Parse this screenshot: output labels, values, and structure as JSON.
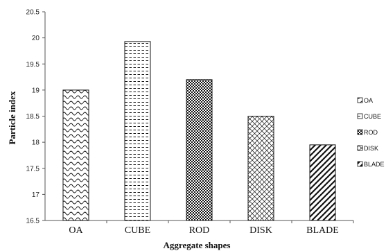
{
  "chart_data": {
    "type": "bar",
    "title": "",
    "xlabel": "Aggregate shapes",
    "ylabel": "Particle index",
    "categories": [
      "OA",
      "CUBE",
      "ROD",
      "DISK",
      "BLADE"
    ],
    "values": [
      19.0,
      19.93,
      19.2,
      18.5,
      17.95
    ],
    "ylim": [
      16.5,
      20.5
    ],
    "yticks": [
      "16.5",
      "17",
      "17.5",
      "18",
      "18.5",
      "19",
      "19.5",
      "20",
      "20.5"
    ],
    "patterns": [
      "wave",
      "dash",
      "checker",
      "crosshatch",
      "diagonal"
    ],
    "legend": {
      "position": "right",
      "entries": [
        "OA",
        "CUBE",
        "ROD",
        "DISK",
        "BLADE"
      ]
    },
    "grid": false
  }
}
